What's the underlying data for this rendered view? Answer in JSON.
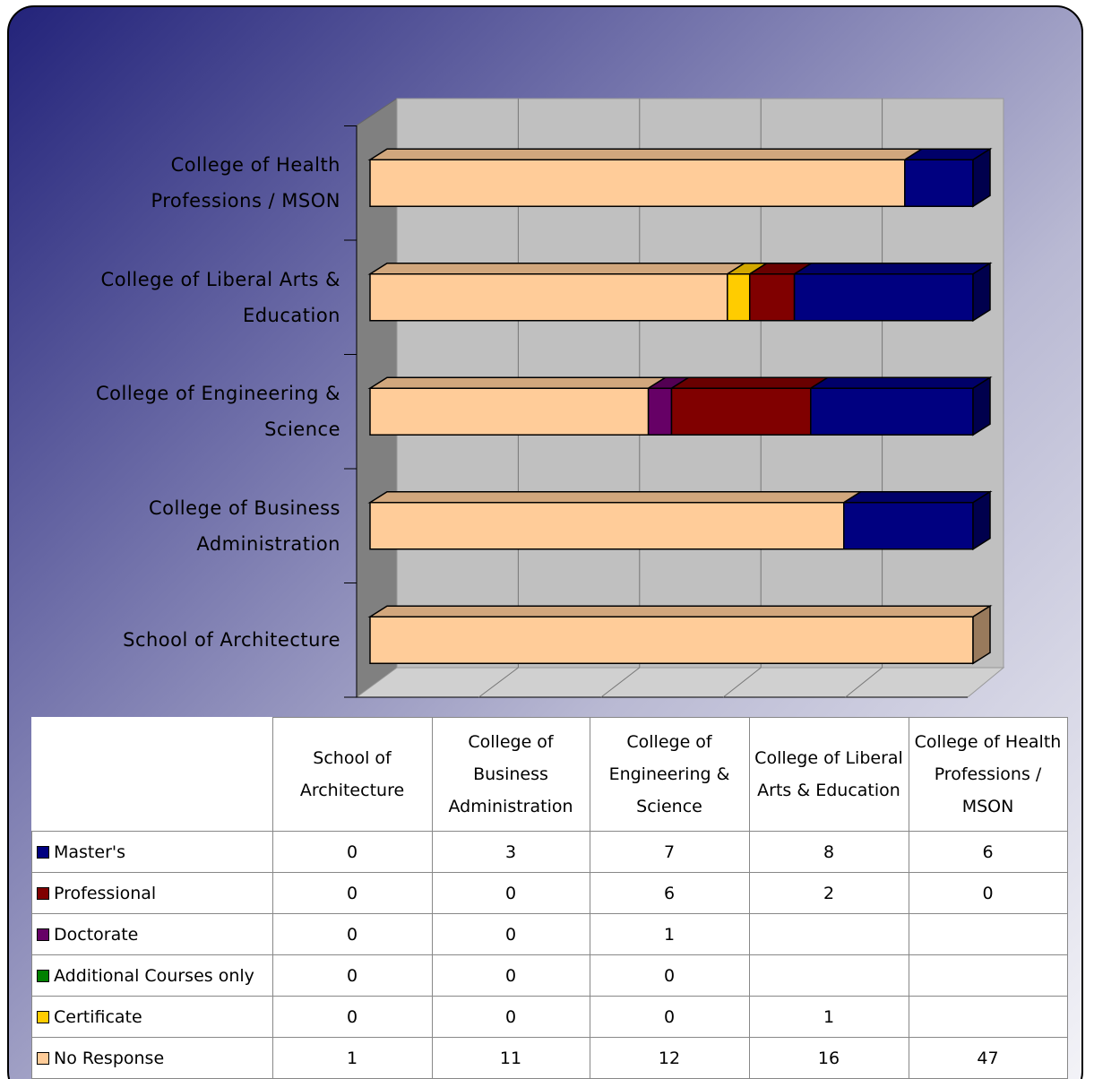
{
  "chart_data": {
    "type": "bar",
    "orientation": "horizontal",
    "stacking": "percent",
    "categories": [
      "School of Architecture",
      "College of Business Administration",
      "College of Engineering & Science",
      "College of Liberal Arts & Education",
      "College of Health Professions / MSON"
    ],
    "series": [
      {
        "name": "Master's",
        "color": "#000080",
        "values": [
          0,
          3,
          7,
          8,
          6
        ]
      },
      {
        "name": "Professional",
        "color": "#800000",
        "values": [
          0,
          0,
          6,
          2,
          0
        ]
      },
      {
        "name": "Doctorate",
        "color": "#660066",
        "values": [
          0,
          0,
          1,
          null,
          null
        ]
      },
      {
        "name": "Additional Courses only",
        "color": "#008000",
        "values": [
          0,
          0,
          0,
          null,
          null
        ]
      },
      {
        "name": "Certificate",
        "color": "#ffcc00",
        "values": [
          0,
          0,
          0,
          1,
          null
        ]
      },
      {
        "name": "No Response",
        "color": "#ffcc99",
        "values": [
          1,
          11,
          12,
          16,
          47
        ]
      }
    ],
    "data_table": true
  }
}
